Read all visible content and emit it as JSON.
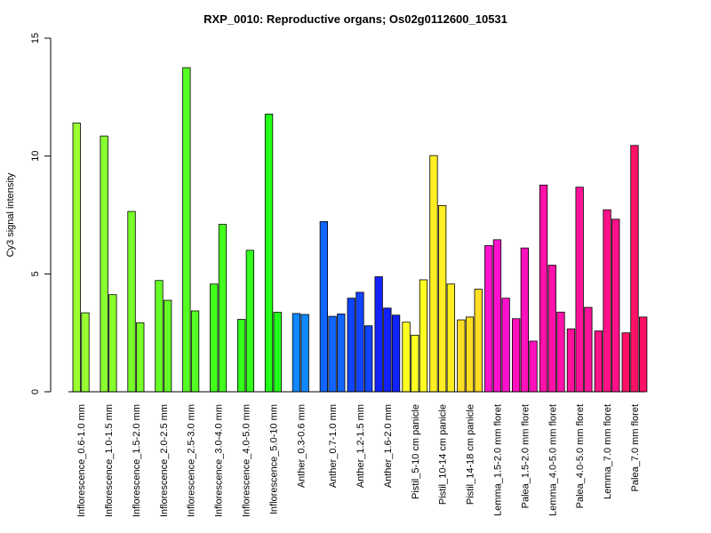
{
  "chart_data": {
    "type": "bar",
    "title": "RXP_0010: Reproductive organs; Os02g0112600_10531",
    "ylabel": "Cy3 signal intensity",
    "xlabel": "",
    "ylim": [
      0,
      15
    ],
    "yticks": [
      "0",
      "5",
      "10",
      "15"
    ],
    "grid": false,
    "legend": "none",
    "groups": [
      {
        "label": "Inflorescence_0.6-1.0 mm",
        "color": "#99ff33",
        "values": [
          11.4,
          3.35
        ]
      },
      {
        "label": "Inflorescence_1.0-1.5 mm",
        "color": "#88ff2e",
        "values": [
          10.85,
          4.12
        ]
      },
      {
        "label": "Inflorescence_1.5-2.0 mm",
        "color": "#77ff2a",
        "values": [
          7.65,
          2.93
        ]
      },
      {
        "label": "Inflorescence_2.0-2.5 mm",
        "color": "#66ff26",
        "values": [
          4.72,
          3.88
        ]
      },
      {
        "label": "Inflorescence_2.5-3.0 mm",
        "color": "#55ff22",
        "values": [
          13.75,
          3.43
        ]
      },
      {
        "label": "Inflorescence_3.0-4.0 mm",
        "color": "#44ff1e",
        "values": [
          4.57,
          7.1
        ]
      },
      {
        "label": "Inflorescence_4.0-5.0 mm",
        "color": "#33ff1a",
        "values": [
          3.07,
          6.0
        ]
      },
      {
        "label": "Inflorescence_5.0-10 mm",
        "color": "#22ff18",
        "values": [
          11.78,
          3.37
        ]
      },
      {
        "label": "Anther_0.3-0.6 mm",
        "color": "#1188ff",
        "values": [
          3.32,
          3.28
        ]
      },
      {
        "label": "Anther_0.7-1.0 mm",
        "color": "#1166ff",
        "values": [
          7.22,
          3.2,
          3.3
        ]
      },
      {
        "label": "Anther_1.2-1.5 mm",
        "color": "#1144ff",
        "values": [
          3.97,
          4.22,
          2.8
        ]
      },
      {
        "label": "Anther_1.6-2.0 mm",
        "color": "#1122ff",
        "values": [
          4.88,
          3.55,
          3.25
        ]
      },
      {
        "label": "Pistil_5-10 cm panicle",
        "color": "#ffff22",
        "values": [
          2.95,
          2.4,
          4.75
        ]
      },
      {
        "label": "Pistil_10-14 cm panicle",
        "color": "#ffee22",
        "values": [
          10.02,
          7.9,
          4.57
        ]
      },
      {
        "label": "Pistil_14-18 cm panicle",
        "color": "#ffdd22",
        "values": [
          3.05,
          3.17,
          4.35
        ]
      },
      {
        "label": "Lemma_1.5-2.0 mm floret",
        "color": "#ff11cc",
        "values": [
          6.2,
          6.45,
          3.97
        ]
      },
      {
        "label": "Palea_1.5-2.0 mm floret",
        "color": "#ff11bb",
        "values": [
          3.1,
          6.1,
          2.15
        ]
      },
      {
        "label": "Lemma_4.0-5.0 mm floret",
        "color": "#ff11aa",
        "values": [
          8.77,
          5.37,
          3.38
        ]
      },
      {
        "label": "Palea_4.0-5.0 mm floret",
        "color": "#ff1199",
        "values": [
          2.67,
          8.68,
          3.58
        ]
      },
      {
        "label": "Lemma_7.0 mm floret",
        "color": "#ff1188",
        "values": [
          2.58,
          7.72,
          7.32
        ]
      },
      {
        "label": "Palea_7.0 mm floret",
        "color": "#ff1166",
        "values": [
          2.5,
          10.45,
          3.17
        ]
      }
    ]
  }
}
